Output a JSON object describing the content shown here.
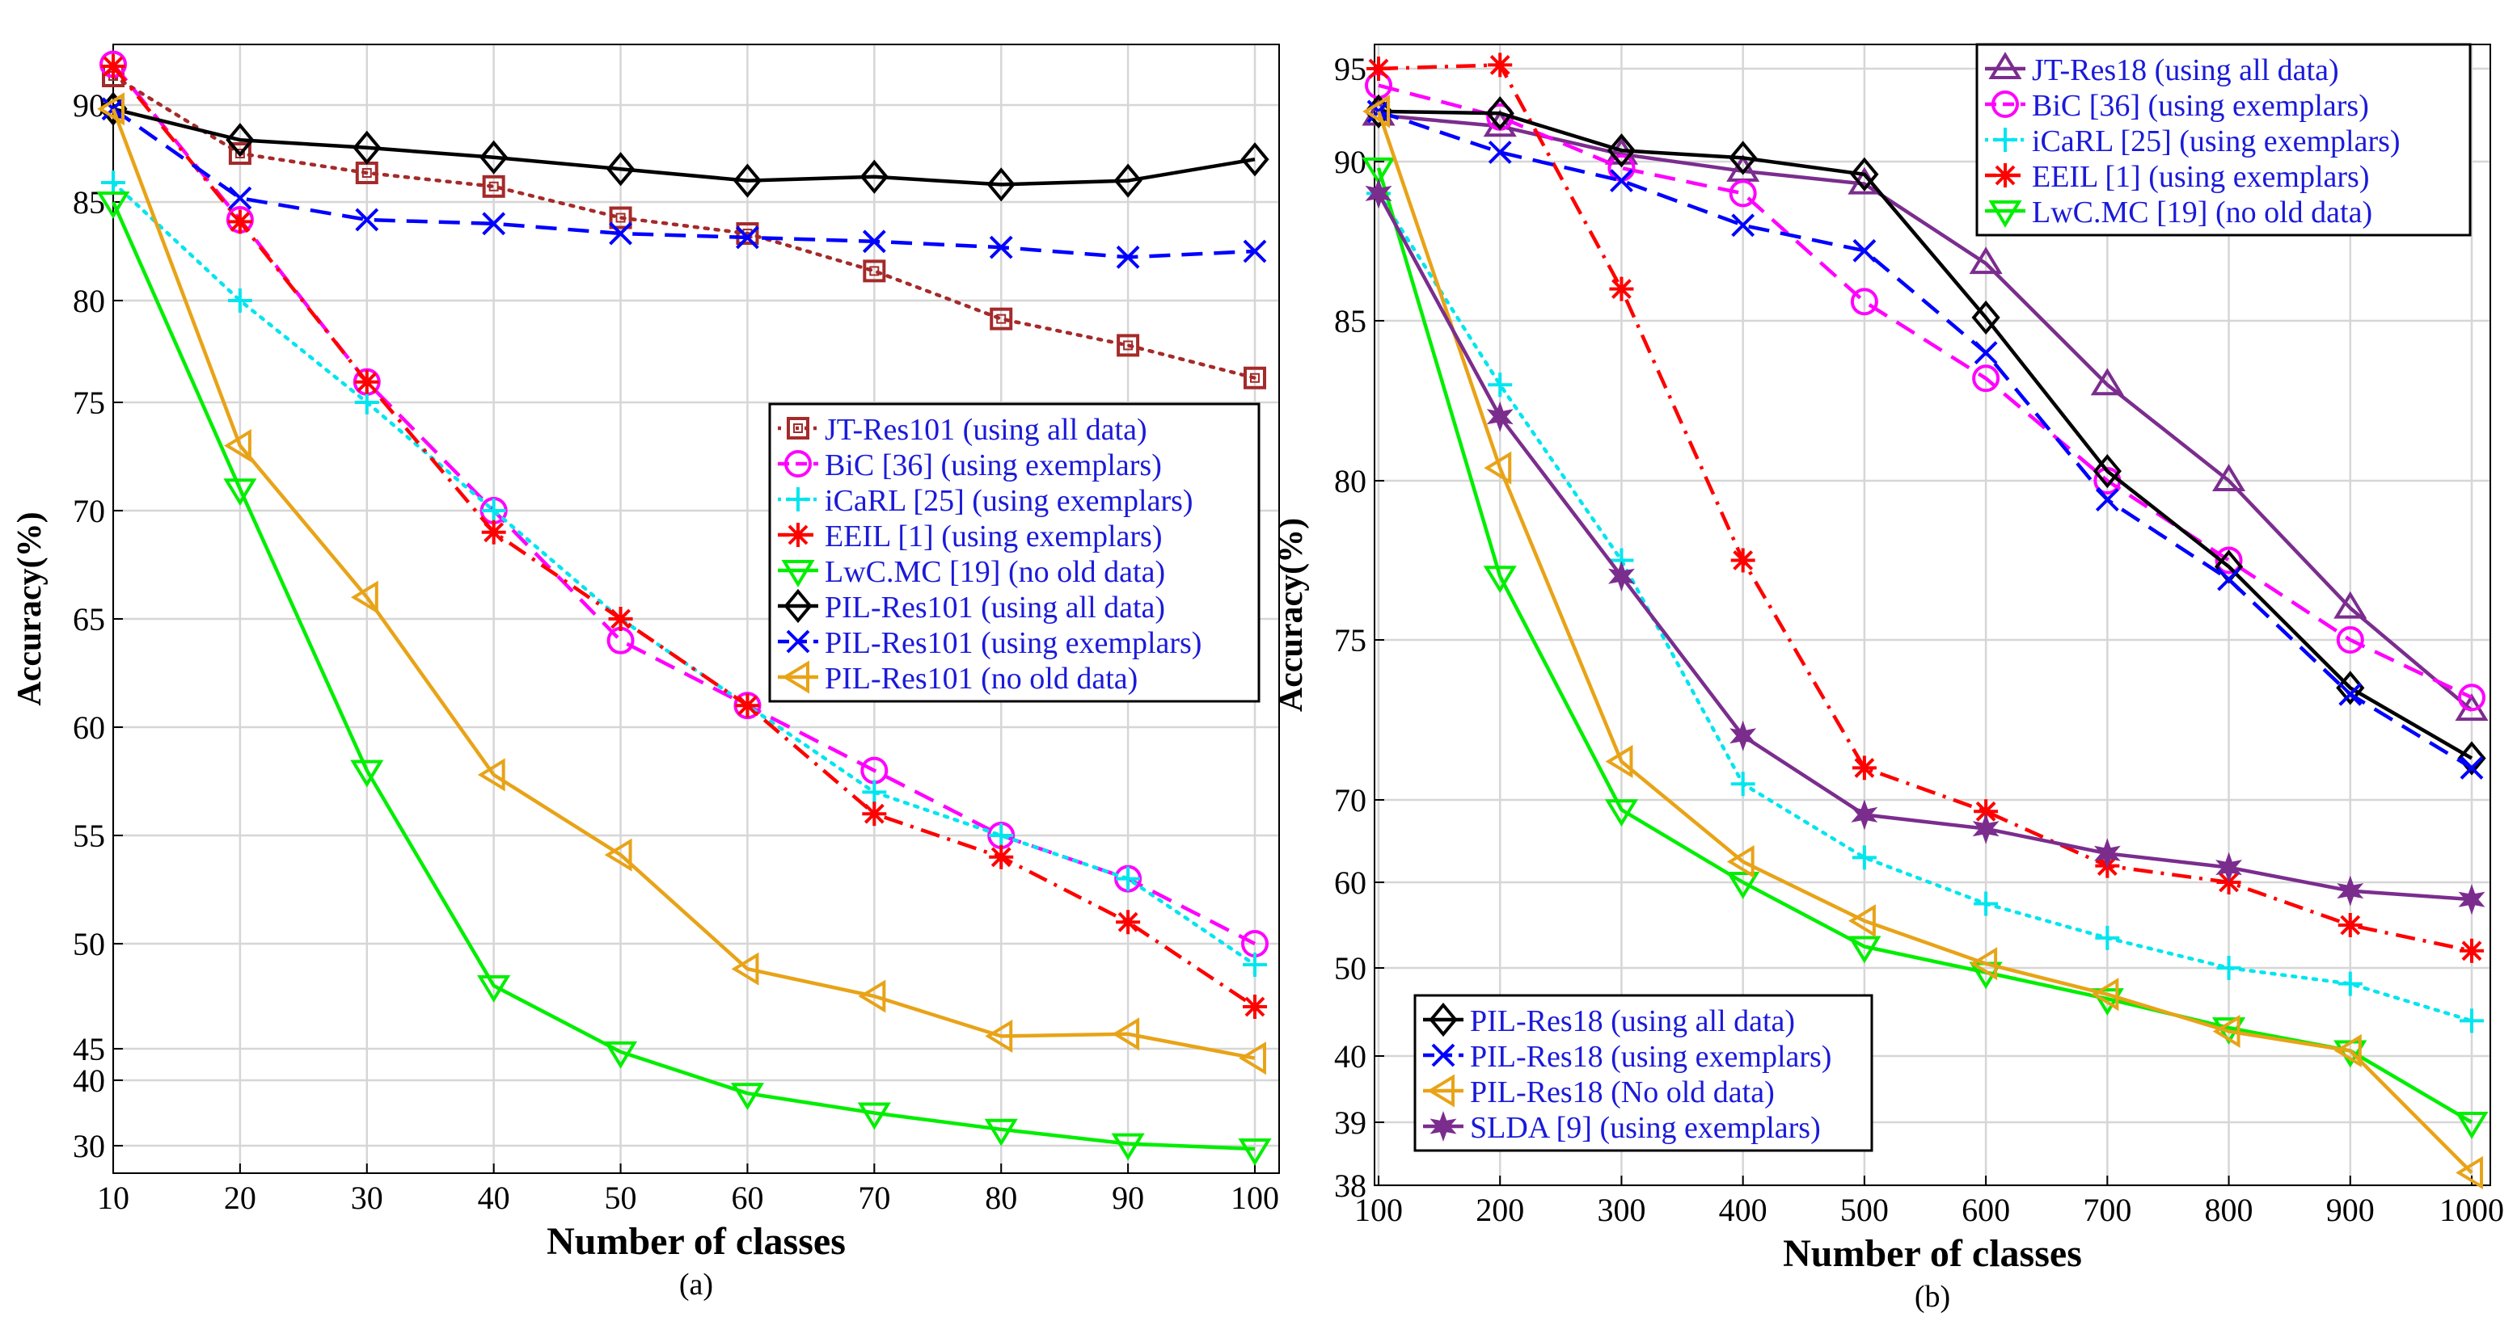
{
  "chart_data": [
    {
      "type": "line",
      "panel_label": "(a)",
      "xlabel": "Number of classes",
      "ylabel": "Accuracy(%)",
      "legend_position": "center-right",
      "grid": true,
      "x": [
        10,
        20,
        30,
        40,
        50,
        60,
        70,
        80,
        90,
        100
      ],
      "x_ticks": [
        "10",
        "20",
        "30",
        "40",
        "50",
        "60",
        "70",
        "80",
        "90",
        "100"
      ],
      "y_ticks": [
        "30",
        "40",
        "45",
        "50",
        "55",
        "60",
        "65",
        "70",
        "75",
        "80",
        "85",
        "90"
      ],
      "series": [
        {
          "name": "JT-Res101 (using all data)",
          "color": "#a52a2a",
          "dash": "dot",
          "marker": "square",
          "values": [
            91.5,
            87.5,
            86.5,
            85.8,
            84.2,
            83.4,
            81.5,
            79.1,
            77.8,
            76.2
          ]
        },
        {
          "name": "BiC [36] (using exemplars)",
          "color": "#ff00ff",
          "dash": "dash",
          "marker": "circle",
          "values": [
            92.1,
            84.1,
            76.0,
            70.0,
            64.0,
            61.0,
            58.0,
            55.0,
            53.0,
            50.0
          ]
        },
        {
          "name": "iCaRL [25] (using exemplars)",
          "color": "#00e5ee",
          "dash": "dot",
          "marker": "plus",
          "values": [
            86.0,
            80.0,
            75.0,
            70.0,
            65.0,
            61.0,
            57.0,
            55.0,
            53.0,
            49.0
          ]
        },
        {
          "name": "EEIL [1] (using exemplars)",
          "color": "#ff0000",
          "dash": "dashdot",
          "marker": "asterisk",
          "values": [
            92.0,
            84.0,
            76.0,
            69.0,
            65.0,
            61.0,
            56.0,
            54.0,
            51.0,
            47.0
          ]
        },
        {
          "name": "LwC.MC [19] (no old data)",
          "color": "#00ee00",
          "dash": "solid",
          "marker": "triangle-down",
          "values": [
            85.0,
            71.0,
            58.0,
            48.0,
            44.5,
            38.0,
            35.0,
            32.5,
            30.3,
            29.5
          ]
        },
        {
          "name": "PIL-Res101 (using all data)",
          "color": "#000000",
          "dash": "solid",
          "marker": "diamond",
          "values": [
            89.8,
            88.2,
            87.8,
            87.3,
            86.7,
            86.1,
            86.3,
            85.9,
            86.1,
            87.2
          ]
        },
        {
          "name": "PIL-Res101 (using exemplars)",
          "color": "#0000ff",
          "dash": "dash",
          "marker": "x",
          "values": [
            89.8,
            85.2,
            84.1,
            83.9,
            83.4,
            83.2,
            83.0,
            82.7,
            82.2,
            82.5
          ]
        },
        {
          "name": "PIL-Res101 (no old data)",
          "color": "#e8a317",
          "dash": "solid",
          "marker": "triangle-left",
          "values": [
            89.8,
            73.0,
            66.0,
            57.8,
            54.1,
            48.8,
            47.5,
            45.6,
            45.7,
            43.5
          ]
        }
      ]
    },
    {
      "type": "line",
      "panel_label": "(b)",
      "xlabel": "Number of classes",
      "ylabel": "Accuracy(%)",
      "legend_position": "top-right / bottom-left",
      "grid": true,
      "x": [
        100,
        200,
        300,
        400,
        500,
        600,
        700,
        800,
        900,
        1000
      ],
      "x_ticks": [
        "100",
        "200",
        "300",
        "400",
        "500",
        "600",
        "700",
        "800",
        "900",
        "1000"
      ],
      "y_ticks": [
        "38",
        "39",
        "40",
        "50",
        "60",
        "70",
        "75",
        "80",
        "85",
        "90",
        "95"
      ],
      "series": [
        {
          "name": "JT-Res18 (using all data)",
          "color": "#7b2d8e",
          "dash": "solid",
          "marker": "triangle-up",
          "values": [
            92.5,
            91.9,
            90.4,
            89.7,
            89.3,
            86.8,
            83.0,
            80.0,
            76.0,
            72.8
          ]
        },
        {
          "name": "BiC [36] (using exemplars)",
          "color": "#ff00ff",
          "dash": "dash",
          "marker": "circle",
          "values": [
            94.1,
            92.4,
            89.8,
            89.0,
            85.6,
            83.2,
            80.0,
            77.5,
            75.0,
            73.2
          ]
        },
        {
          "name": "iCaRL [25] (using exemplars)",
          "color": "#00e5ee",
          "dash": "dot",
          "marker": "plus",
          "values": [
            89.0,
            83.0,
            77.5,
            70.5,
            63.0,
            57.5,
            53.5,
            50.0,
            48.2,
            44.0
          ]
        },
        {
          "name": "EEIL [1] (using exemplars)",
          "color": "#ff0000",
          "dash": "dashdot",
          "marker": "asterisk",
          "values": [
            95.0,
            95.2,
            86.0,
            77.5,
            71.0,
            68.6,
            62.0,
            60.0,
            55.0,
            52.0
          ]
        },
        {
          "name": "LwC.MC [19] (no old data)",
          "color": "#00ee00",
          "dash": "solid",
          "marker": "triangle-down",
          "values": [
            89.8,
            77.0,
            68.8,
            60.0,
            52.5,
            49.5,
            46.5,
            43.2,
            40.6,
            39.0
          ]
        },
        {
          "name": "PIL-Res18 (using all data)",
          "color": "#000000",
          "dash": "solid",
          "marker": "diamond",
          "values": [
            92.7,
            92.6,
            90.6,
            90.2,
            89.6,
            85.1,
            80.3,
            77.3,
            73.5,
            71.3
          ]
        },
        {
          "name": "PIL-Res18 (using exemplars)",
          "color": "#0000ff",
          "dash": "dash",
          "marker": "x",
          "values": [
            92.7,
            90.5,
            89.4,
            88.0,
            87.2,
            84.0,
            79.4,
            76.9,
            73.3,
            71.0
          ]
        },
        {
          "name": "PIL-Res18 (No old data)",
          "color": "#e8a317",
          "dash": "solid",
          "marker": "triangle-left",
          "values": [
            92.7,
            80.4,
            71.2,
            62.5,
            55.5,
            50.5,
            47.0,
            42.8,
            40.6,
            38.2
          ]
        },
        {
          "name": "SLDA [9] (using exemplars)",
          "color": "#7b2d8e",
          "dash": "solid",
          "marker": "hexagram",
          "values": [
            89.0,
            82.0,
            77.0,
            72.0,
            68.2,
            66.5,
            63.5,
            61.8,
            59.0,
            58.0
          ]
        }
      ]
    }
  ]
}
